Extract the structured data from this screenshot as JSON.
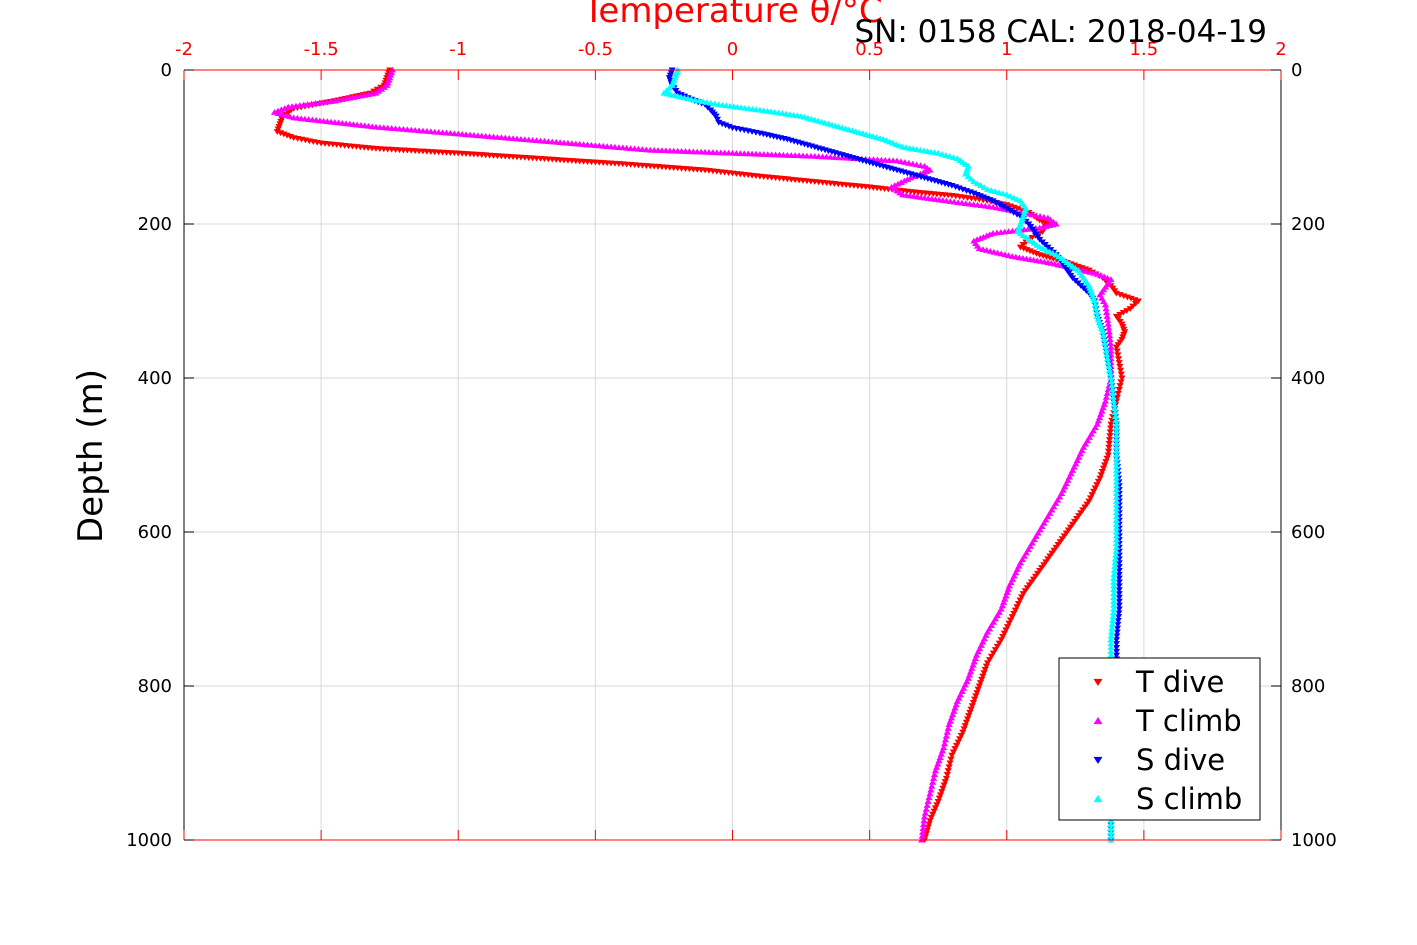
{
  "chart_data": {
    "type": "scatter",
    "title": "SN: 0158  CAL: 2018-04-19",
    "xlabel": "Temperature θ/°C",
    "ylabel": "Depth (m)",
    "xlim": [
      -2,
      2
    ],
    "ylim": [
      0,
      1000
    ],
    "y_reversed": true,
    "x_axis_position": "top",
    "right_y_axis": true,
    "grid": true,
    "legend_position": "bottom-right",
    "xticks": [
      "-2",
      "-1.5",
      "-1",
      "-0.5",
      "0",
      "0.5",
      "1",
      "1.5",
      "2"
    ],
    "yticks": [
      "0",
      "200",
      "400",
      "600",
      "800",
      "1000"
    ],
    "colors": {
      "axis_x": "#ff0000",
      "axis_y": "#000000",
      "grid": "#d9d9d9"
    },
    "series": [
      {
        "name": "T dive",
        "color": "#ff0000",
        "marker": "triangle-down",
        "points": [
          [
            -1.25,
            0
          ],
          [
            -1.26,
            10
          ],
          [
            -1.27,
            20
          ],
          [
            -1.32,
            30
          ],
          [
            -1.45,
            40
          ],
          [
            -1.6,
            50
          ],
          [
            -1.64,
            60
          ],
          [
            -1.65,
            70
          ],
          [
            -1.66,
            80
          ],
          [
            -1.6,
            88
          ],
          [
            -1.5,
            95
          ],
          [
            -1.3,
            102
          ],
          [
            -1.0,
            108
          ],
          [
            -0.7,
            115
          ],
          [
            -0.4,
            122
          ],
          [
            -0.1,
            130
          ],
          [
            0.1,
            138
          ],
          [
            0.3,
            145
          ],
          [
            0.5,
            152
          ],
          [
            0.65,
            158
          ],
          [
            0.8,
            163
          ],
          [
            0.9,
            168
          ],
          [
            1.0,
            175
          ],
          [
            1.08,
            185
          ],
          [
            1.12,
            195
          ],
          [
            1.15,
            200
          ],
          [
            1.13,
            210
          ],
          [
            1.08,
            220
          ],
          [
            1.05,
            230
          ],
          [
            1.12,
            240
          ],
          [
            1.22,
            250
          ],
          [
            1.3,
            260
          ],
          [
            1.35,
            270
          ],
          [
            1.38,
            280
          ],
          [
            1.4,
            290
          ],
          [
            1.48,
            300
          ],
          [
            1.45,
            310
          ],
          [
            1.4,
            320
          ],
          [
            1.42,
            330
          ],
          [
            1.43,
            340
          ],
          [
            1.42,
            350
          ],
          [
            1.4,
            360
          ],
          [
            1.41,
            380
          ],
          [
            1.42,
            400
          ],
          [
            1.4,
            430
          ],
          [
            1.38,
            460
          ],
          [
            1.37,
            500
          ],
          [
            1.34,
            530
          ],
          [
            1.3,
            560
          ],
          [
            1.24,
            590
          ],
          [
            1.18,
            620
          ],
          [
            1.12,
            650
          ],
          [
            1.06,
            680
          ],
          [
            1.02,
            710
          ],
          [
            0.98,
            740
          ],
          [
            0.93,
            770
          ],
          [
            0.9,
            800
          ],
          [
            0.87,
            830
          ],
          [
            0.84,
            860
          ],
          [
            0.8,
            890
          ],
          [
            0.78,
            920
          ],
          [
            0.75,
            950
          ],
          [
            0.72,
            975
          ],
          [
            0.7,
            1000
          ]
        ]
      },
      {
        "name": "T climb",
        "color": "#ff00ff",
        "marker": "triangle-up",
        "points": [
          [
            -1.24,
            0
          ],
          [
            -1.25,
            10
          ],
          [
            -1.26,
            20
          ],
          [
            -1.3,
            30
          ],
          [
            -1.45,
            40
          ],
          [
            -1.62,
            48
          ],
          [
            -1.67,
            55
          ],
          [
            -1.6,
            62
          ],
          [
            -1.45,
            68
          ],
          [
            -1.3,
            74
          ],
          [
            -1.1,
            80
          ],
          [
            -0.9,
            86
          ],
          [
            -0.7,
            92
          ],
          [
            -0.5,
            98
          ],
          [
            -0.3,
            104
          ],
          [
            0.0,
            108
          ],
          [
            0.3,
            112
          ],
          [
            0.6,
            118
          ],
          [
            0.7,
            125
          ],
          [
            0.72,
            130
          ],
          [
            0.65,
            140
          ],
          [
            0.58,
            152
          ],
          [
            0.62,
            162
          ],
          [
            0.78,
            170
          ],
          [
            0.95,
            178
          ],
          [
            1.05,
            185
          ],
          [
            1.15,
            192
          ],
          [
            1.18,
            200
          ],
          [
            1.12,
            205
          ],
          [
            0.95,
            212
          ],
          [
            0.88,
            222
          ],
          [
            0.9,
            232
          ],
          [
            1.02,
            242
          ],
          [
            1.15,
            250
          ],
          [
            1.25,
            258
          ],
          [
            1.33,
            265
          ],
          [
            1.38,
            272
          ],
          [
            1.36,
            282
          ],
          [
            1.34,
            292
          ],
          [
            1.36,
            305
          ],
          [
            1.37,
            330
          ],
          [
            1.38,
            360
          ],
          [
            1.38,
            400
          ],
          [
            1.36,
            430
          ],
          [
            1.33,
            460
          ],
          [
            1.28,
            490
          ],
          [
            1.24,
            520
          ],
          [
            1.2,
            550
          ],
          [
            1.15,
            580
          ],
          [
            1.1,
            610
          ],
          [
            1.05,
            640
          ],
          [
            1.01,
            670
          ],
          [
            0.98,
            700
          ],
          [
            0.93,
            730
          ],
          [
            0.89,
            760
          ],
          [
            0.86,
            790
          ],
          [
            0.82,
            820
          ],
          [
            0.79,
            850
          ],
          [
            0.77,
            880
          ],
          [
            0.74,
            910
          ],
          [
            0.72,
            940
          ],
          [
            0.7,
            970
          ],
          [
            0.69,
            1000
          ]
        ]
      },
      {
        "name": "S dive",
        "color": "#0000ff",
        "marker": "triangle-down",
        "points": [
          [
            -0.22,
            0
          ],
          [
            -0.23,
            10
          ],
          [
            -0.22,
            20
          ],
          [
            -0.2,
            30
          ],
          [
            -0.15,
            38
          ],
          [
            -0.1,
            45
          ],
          [
            -0.08,
            52
          ],
          [
            -0.06,
            60
          ],
          [
            -0.05,
            68
          ],
          [
            0.0,
            75
          ],
          [
            0.1,
            82
          ],
          [
            0.2,
            90
          ],
          [
            0.3,
            100
          ],
          [
            0.4,
            110
          ],
          [
            0.5,
            120
          ],
          [
            0.6,
            130
          ],
          [
            0.7,
            140
          ],
          [
            0.8,
            150
          ],
          [
            0.88,
            160
          ],
          [
            0.95,
            170
          ],
          [
            1.0,
            180
          ],
          [
            1.05,
            190
          ],
          [
            1.08,
            200
          ],
          [
            1.1,
            210
          ],
          [
            1.12,
            220
          ],
          [
            1.15,
            230
          ],
          [
            1.18,
            240
          ],
          [
            1.2,
            250
          ],
          [
            1.22,
            260
          ],
          [
            1.24,
            270
          ],
          [
            1.27,
            280
          ],
          [
            1.3,
            290
          ],
          [
            1.32,
            300
          ],
          [
            1.33,
            320
          ],
          [
            1.35,
            340
          ],
          [
            1.36,
            360
          ],
          [
            1.37,
            380
          ],
          [
            1.38,
            400
          ],
          [
            1.39,
            430
          ],
          [
            1.4,
            460
          ],
          [
            1.4,
            500
          ],
          [
            1.41,
            540
          ],
          [
            1.41,
            580
          ],
          [
            1.41,
            620
          ],
          [
            1.41,
            660
          ],
          [
            1.41,
            700
          ],
          [
            1.4,
            740
          ],
          [
            1.4,
            780
          ],
          [
            1.39,
            820
          ],
          [
            1.39,
            860
          ],
          [
            1.39,
            900
          ],
          [
            1.39,
            940
          ],
          [
            1.38,
            970
          ],
          [
            1.38,
            1000
          ]
        ]
      },
      {
        "name": "S climb",
        "color": "#00ffff",
        "marker": "triangle-up",
        "points": [
          [
            -0.2,
            0
          ],
          [
            -0.21,
            10
          ],
          [
            -0.22,
            20
          ],
          [
            -0.25,
            30
          ],
          [
            -0.15,
            38
          ],
          [
            -0.05,
            45
          ],
          [
            0.1,
            52
          ],
          [
            0.25,
            60
          ],
          [
            0.35,
            70
          ],
          [
            0.45,
            80
          ],
          [
            0.55,
            90
          ],
          [
            0.62,
            100
          ],
          [
            0.75,
            108
          ],
          [
            0.82,
            115
          ],
          [
            0.86,
            125
          ],
          [
            0.85,
            135
          ],
          [
            0.88,
            145
          ],
          [
            0.93,
            155
          ],
          [
            1.0,
            162
          ],
          [
            1.05,
            170
          ],
          [
            1.07,
            180
          ],
          [
            1.06,
            190
          ],
          [
            1.05,
            200
          ],
          [
            1.04,
            210
          ],
          [
            1.08,
            220
          ],
          [
            1.12,
            230
          ],
          [
            1.18,
            240
          ],
          [
            1.22,
            250
          ],
          [
            1.26,
            260
          ],
          [
            1.28,
            270
          ],
          [
            1.3,
            280
          ],
          [
            1.31,
            290
          ],
          [
            1.32,
            300
          ],
          [
            1.33,
            320
          ],
          [
            1.35,
            340
          ],
          [
            1.36,
            360
          ],
          [
            1.37,
            380
          ],
          [
            1.38,
            400
          ],
          [
            1.39,
            430
          ],
          [
            1.4,
            460
          ],
          [
            1.4,
            500
          ],
          [
            1.4,
            540
          ],
          [
            1.4,
            580
          ],
          [
            1.4,
            620
          ],
          [
            1.39,
            660
          ],
          [
            1.39,
            700
          ],
          [
            1.38,
            740
          ],
          [
            1.38,
            780
          ],
          [
            1.38,
            820
          ],
          [
            1.38,
            860
          ],
          [
            1.38,
            900
          ],
          [
            1.38,
            940
          ],
          [
            1.38,
            970
          ],
          [
            1.38,
            1000
          ]
        ]
      }
    ]
  }
}
